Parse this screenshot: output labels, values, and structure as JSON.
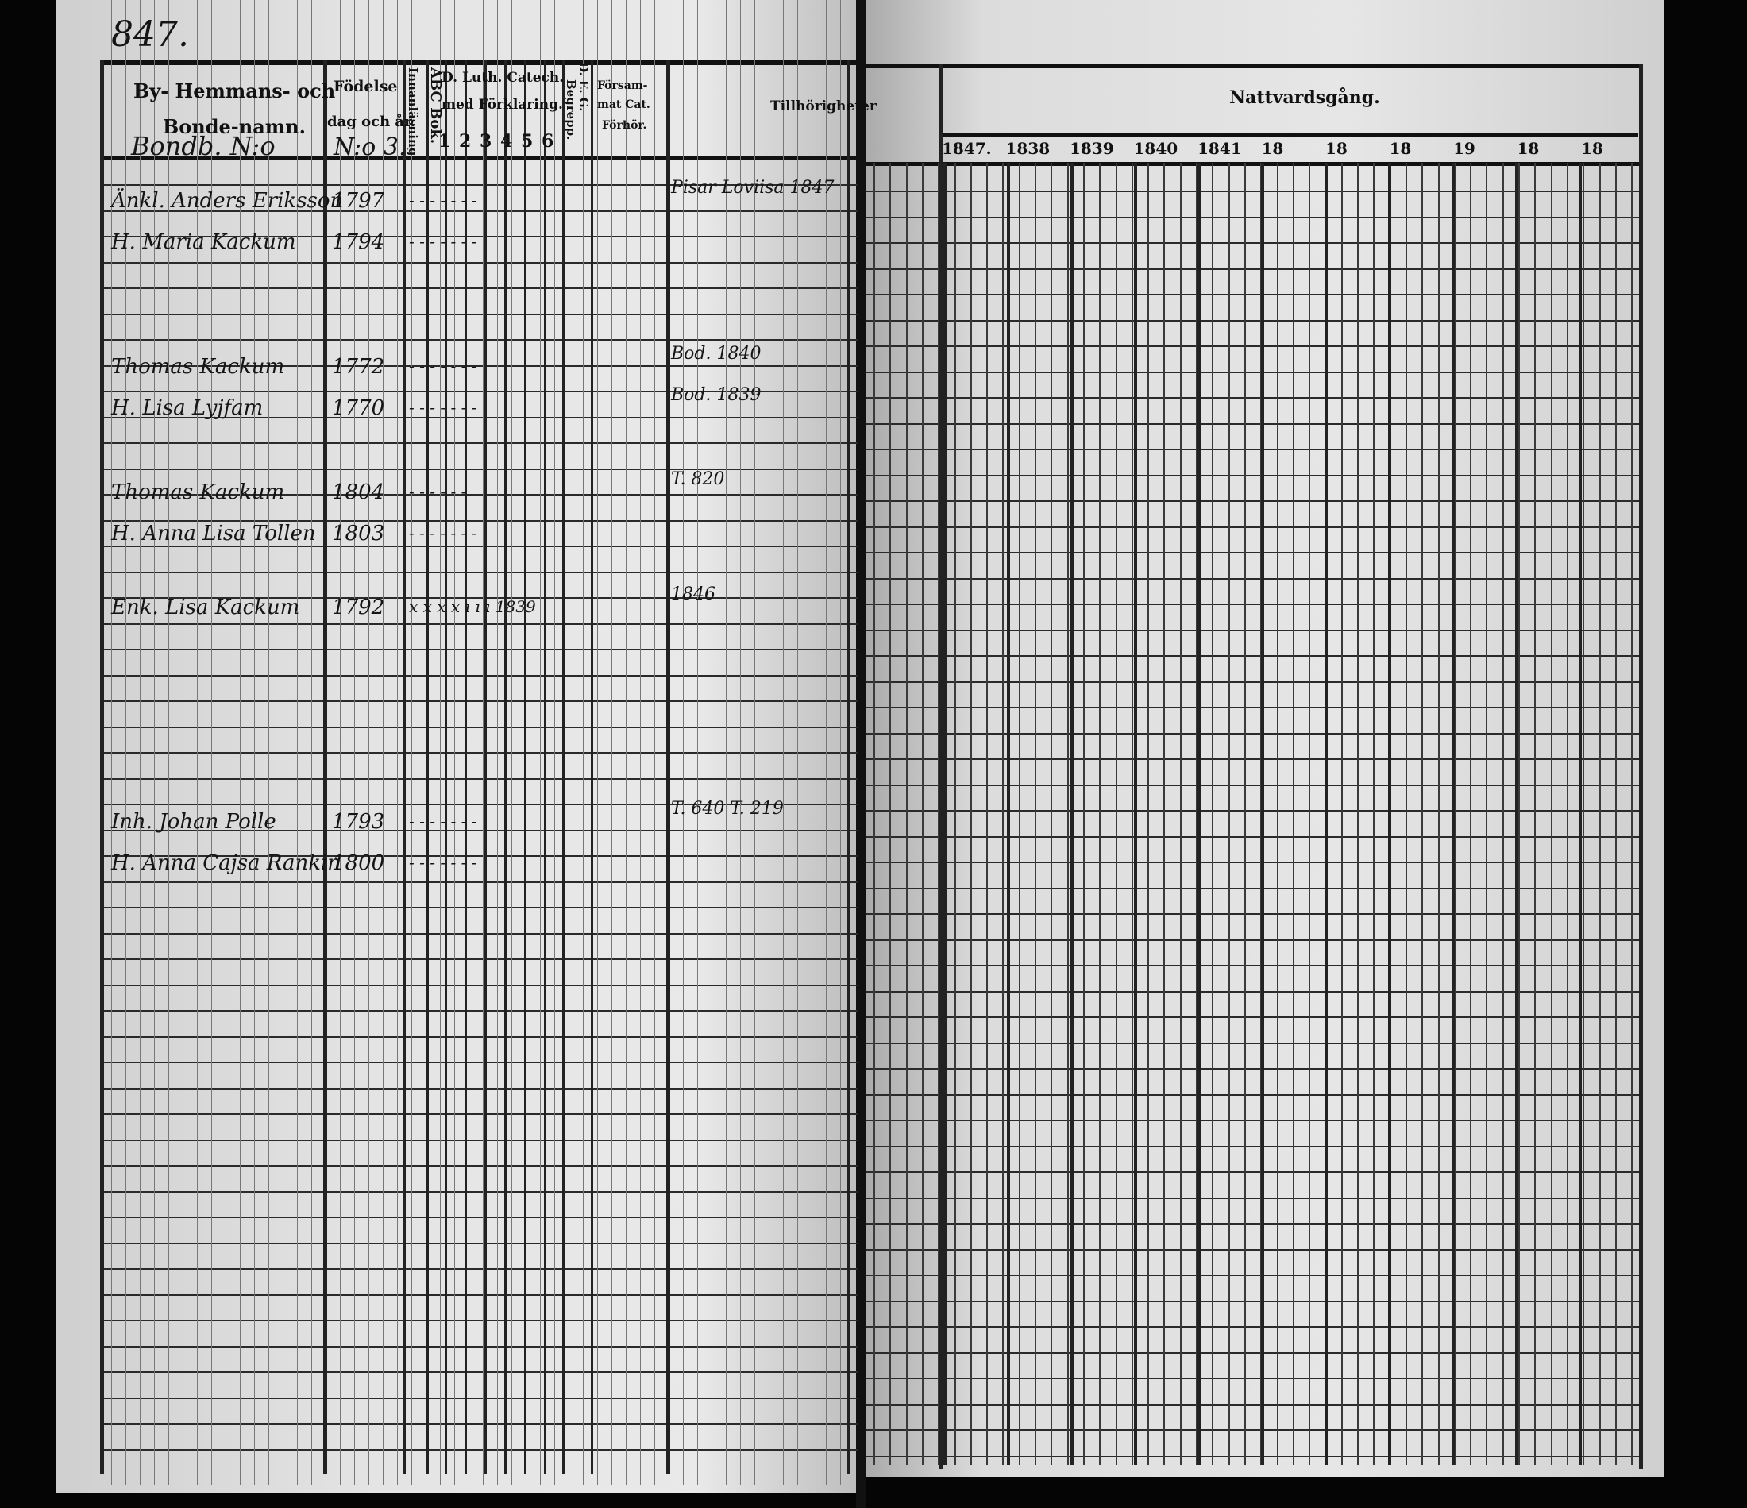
{
  "page_number": "847.",
  "left_header": {
    "by_hemmans": "By- Hemmans- och",
    "bonde_namn": "Bonde-namn.",
    "rote_label": "Bondb. N:o",
    "fodelse": "Födelse",
    "dag_och_ar": "dag och år.",
    "no_label": "N:o 3.",
    "innanlasning": "Innanläsning.",
    "abc_bok": "ABC Bok.",
    "catech_line1": "D. Luth. Catech.",
    "catech_line2": "med Förklaring.",
    "catech_numbers": [
      "1",
      "2",
      "3",
      "4",
      "5",
      "6"
    ],
    "begrepp": "Begrepp.",
    "d_e_g": "D. E. G.",
    "forsamnat_line1": "Försam-",
    "forsamnat_line2": "mat Cat.",
    "forsamnat_line3": "Förhör.",
    "tillhoringar": "Tillhörigheter"
  },
  "right_header": {
    "title": "Nattvardsgång.",
    "years": [
      "1847.",
      "1838",
      "1839",
      "1840",
      "1841",
      "18",
      "18",
      "18",
      "19",
      "18",
      "18"
    ]
  },
  "entries": [
    {
      "name": "Änkl. Anders Eriksson",
      "year": "1797",
      "marks": "- - - - - - -",
      "note": "Pisar Loviisa 1847"
    },
    {
      "name": "H. Maria Kackum",
      "year": "1794",
      "marks": "- - - - - - -",
      "note": ""
    },
    {
      "name": "Thomas Kackum",
      "year": "1772",
      "marks": "- - - - - - -",
      "note": "Bod. 1840"
    },
    {
      "name": "H. Lisa Lyjfam",
      "year": "1770",
      "marks": "- - - - - - -",
      "note": "Bod. 1839"
    },
    {
      "name": "Thomas Kackum",
      "year": "1804",
      "marks": "- - - - - -",
      "note": "T. 820"
    },
    {
      "name": "H. Anna Lisa Tollen",
      "year": "1803",
      "marks": "- - - - - - -",
      "note": ""
    },
    {
      "name": "Enk. Lisa Kackum",
      "year": "1792",
      "marks": "x x x x ı ı ı 1839",
      "note": "1846"
    },
    {
      "name": "Inh. Johan Polle",
      "year": "1793",
      "marks": "- - - - - - -",
      "note": "T. 640 T. 219"
    },
    {
      "name": "H. Anna Cajsa Rankin",
      "year": "1800",
      "marks": "- - - - - - -",
      "note": ""
    }
  ],
  "colors": {
    "ink": "#111111",
    "paper": "#e0e0e0",
    "background": "#050505"
  }
}
